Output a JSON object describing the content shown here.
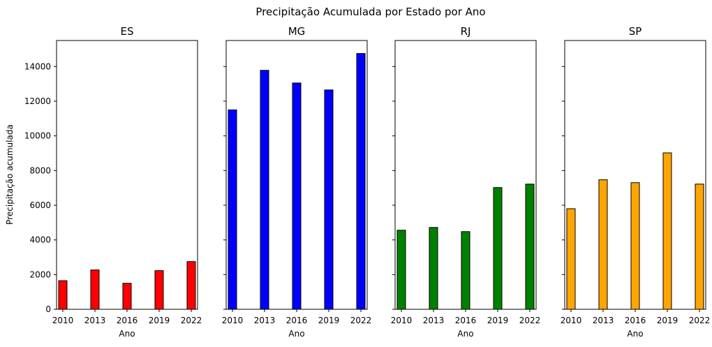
{
  "chart_data": {
    "type": "bar",
    "title": "Precipitação Acumulada por Estado por Ano",
    "ylabel": "Precipitação acumulada",
    "xlabel": "Ano",
    "ylim": [
      0,
      15500
    ],
    "yticks": [
      0,
      2000,
      4000,
      6000,
      8000,
      10000,
      12000,
      14000
    ],
    "categories": [
      "2010",
      "2013",
      "2016",
      "2019",
      "2022"
    ],
    "grid": false,
    "legend": "none",
    "panels": [
      {
        "name": "ES",
        "color": "#ff0000",
        "values": [
          1650,
          2270,
          1500,
          2230,
          2750
        ]
      },
      {
        "name": "MG",
        "color": "#0000ff",
        "values": [
          11500,
          13780,
          13050,
          12650,
          14750
        ]
      },
      {
        "name": "RJ",
        "color": "#008000",
        "values": [
          4560,
          4720,
          4480,
          7020,
          7220
        ]
      },
      {
        "name": "SP",
        "color": "#ffa500",
        "values": [
          5800,
          7470,
          7300,
          9020,
          7220
        ]
      }
    ]
  }
}
